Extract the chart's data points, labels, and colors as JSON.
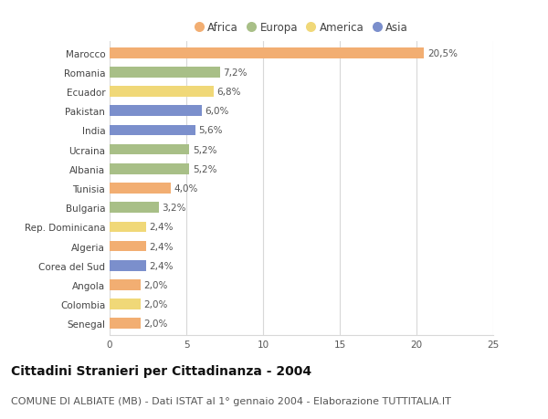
{
  "countries": [
    "Marocco",
    "Romania",
    "Ecuador",
    "Pakistan",
    "India",
    "Ucraina",
    "Albania",
    "Tunisia",
    "Bulgaria",
    "Rep. Dominicana",
    "Algeria",
    "Corea del Sud",
    "Angola",
    "Colombia",
    "Senegal"
  ],
  "values": [
    20.5,
    7.2,
    6.8,
    6.0,
    5.6,
    5.2,
    5.2,
    4.0,
    3.2,
    2.4,
    2.4,
    2.4,
    2.0,
    2.0,
    2.0
  ],
  "labels": [
    "20,5%",
    "7,2%",
    "6,8%",
    "6,0%",
    "5,6%",
    "5,2%",
    "5,2%",
    "4,0%",
    "3,2%",
    "2,4%",
    "2,4%",
    "2,4%",
    "2,0%",
    "2,0%",
    "2,0%"
  ],
  "continents": [
    "Africa",
    "Europa",
    "America",
    "Asia",
    "Asia",
    "Europa",
    "Europa",
    "Africa",
    "Europa",
    "America",
    "Africa",
    "Asia",
    "Africa",
    "America",
    "Africa"
  ],
  "continent_colors": {
    "Africa": "#F2AE72",
    "Europa": "#A8BF87",
    "America": "#F0D878",
    "Asia": "#7B8FCC"
  },
  "legend_order": [
    "Africa",
    "Europa",
    "America",
    "Asia"
  ],
  "xlim": [
    0,
    25
  ],
  "xticks": [
    0,
    5,
    10,
    15,
    20,
    25
  ],
  "title": "Cittadini Stranieri per Cittadinanza - 2004",
  "subtitle": "COMUNE DI ALBIATE (MB) - Dati ISTAT al 1° gennaio 2004 - Elaborazione TUTTITALIA.IT",
  "background_color": "#ffffff",
  "grid_color": "#d8d8d8",
  "bar_height": 0.55,
  "title_fontsize": 10,
  "subtitle_fontsize": 8,
  "label_fontsize": 7.5,
  "tick_fontsize": 7.5,
  "legend_fontsize": 8.5
}
